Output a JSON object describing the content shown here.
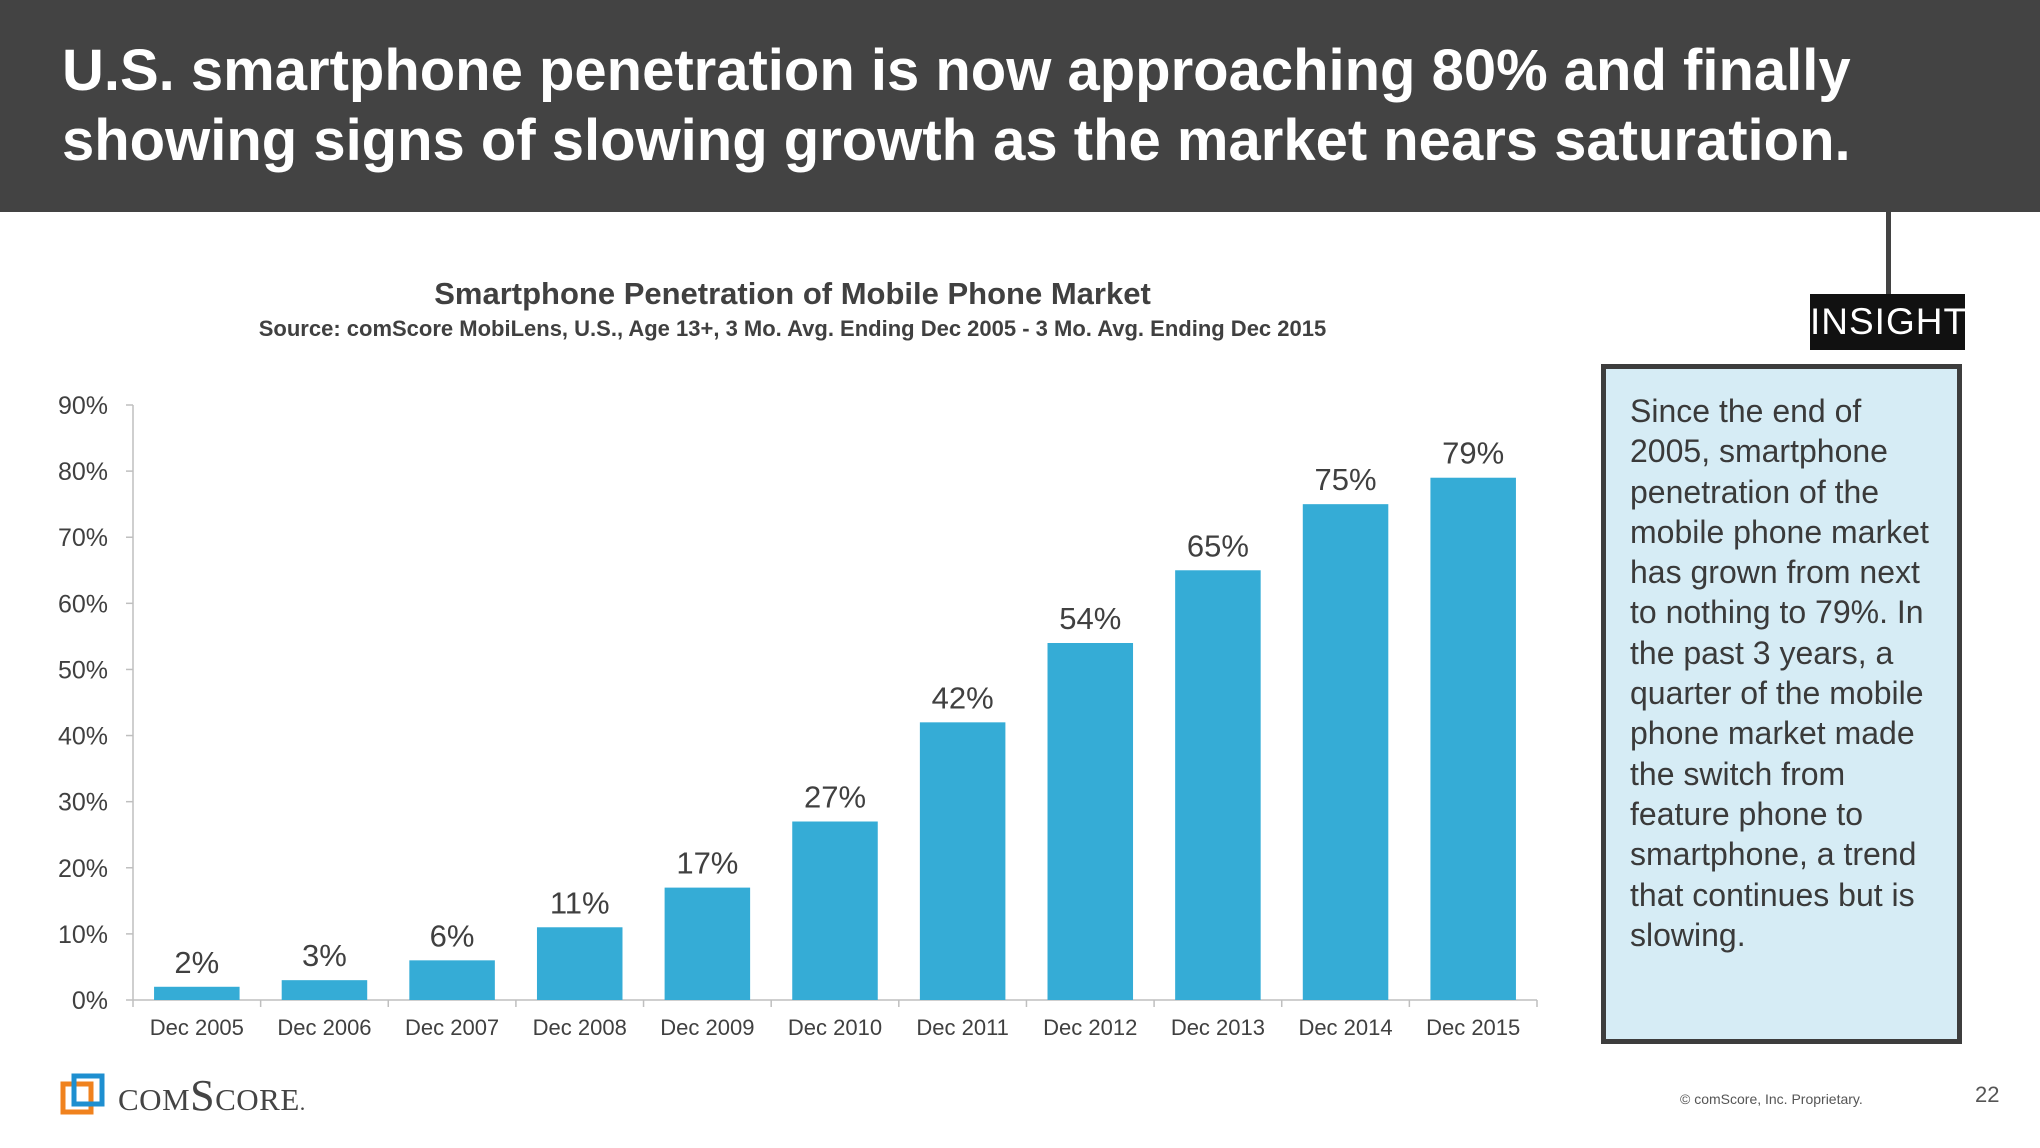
{
  "header": {
    "headline": "U.S. smartphone penetration is now approaching 80% and finally showing signs of slowing growth as the market nears saturation."
  },
  "chart_data": {
    "type": "bar",
    "title": "Smartphone Penetration of Mobile Phone Market",
    "subtitle": "Source: comScore MobiLens, U.S., Age 13+, 3 Mo. Avg. Ending Dec 2005 - 3 Mo. Avg. Ending Dec 2015",
    "categories": [
      "Dec 2005",
      "Dec 2006",
      "Dec 2007",
      "Dec 2008",
      "Dec 2009",
      "Dec 2010",
      "Dec 2011",
      "Dec 2012",
      "Dec 2013",
      "Dec 2014",
      "Dec 2015"
    ],
    "values": [
      2,
      3,
      6,
      11,
      17,
      27,
      42,
      54,
      65,
      75,
      79
    ],
    "data_labels": [
      "2%",
      "3%",
      "6%",
      "11%",
      "17%",
      "27%",
      "42%",
      "54%",
      "65%",
      "75%",
      "79%"
    ],
    "ylim": [
      0,
      90
    ],
    "yticks": [
      0,
      10,
      20,
      30,
      40,
      50,
      60,
      70,
      80,
      90
    ],
    "ytick_labels": [
      "0%",
      "10%",
      "20%",
      "30%",
      "40%",
      "50%",
      "60%",
      "70%",
      "80%",
      "90%"
    ],
    "xlabel": "",
    "ylabel": "",
    "grid": false,
    "bar_color": "#35acd6"
  },
  "insight": {
    "tag": "INSIGHT",
    "text": "Since the end of 2005, smartphone penetration of the mobile phone market has grown from next to nothing to 79%. In the past 3 years, a quarter of the mobile phone market made the switch from feature phone to smartphone, a trend that continues but is slowing."
  },
  "footer": {
    "logo_text": "comScore",
    "logo_suffix": ".",
    "copyright": "© comScore, Inc. Proprietary.",
    "page_number": "22"
  },
  "colors": {
    "header_bg": "#434343",
    "bar": "#35acd6",
    "insight_bg": "#d6ecf5",
    "logo_orange": "#f0821e",
    "logo_blue": "#1e8fd0"
  }
}
